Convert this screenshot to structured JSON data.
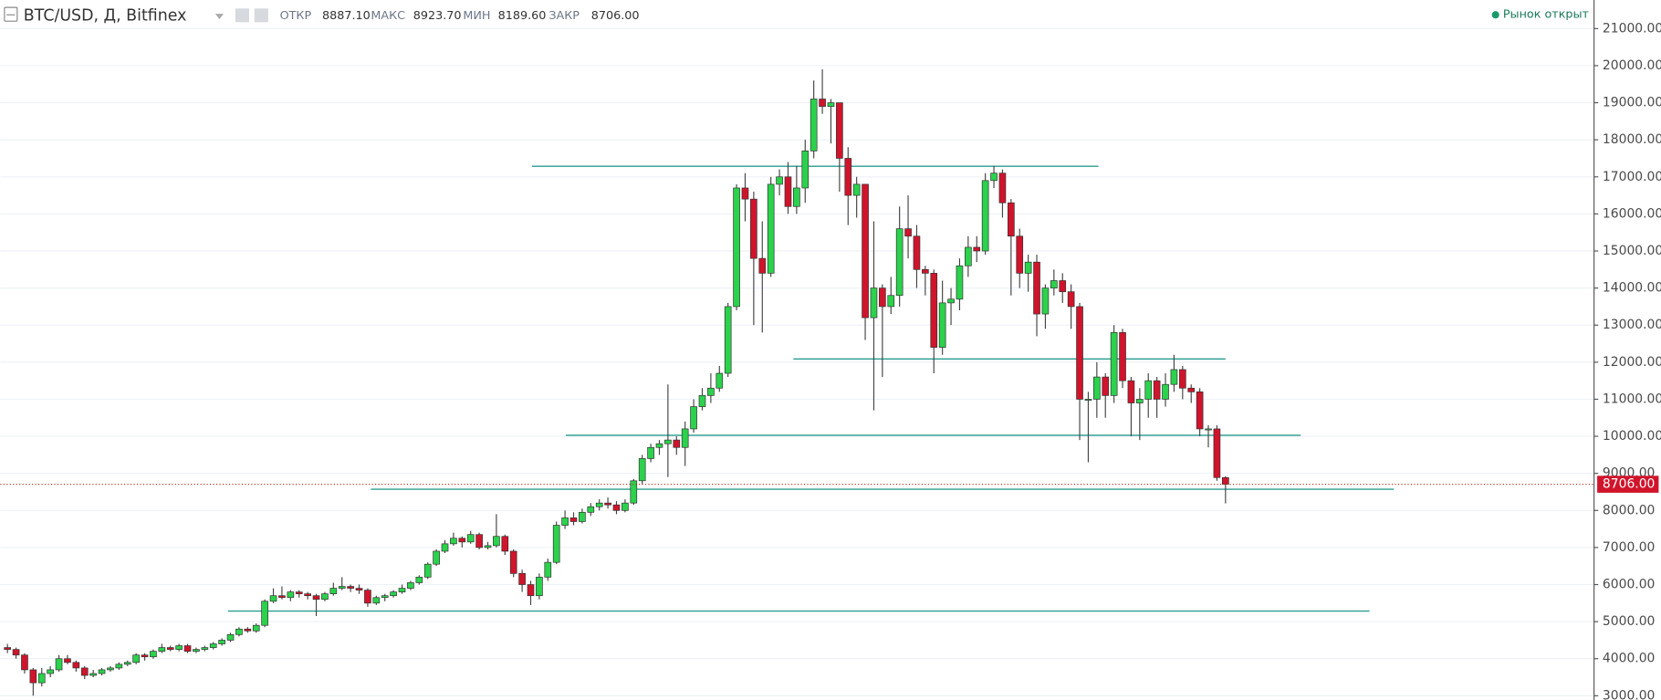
{
  "chart_data": {
    "type": "candlestick",
    "title": "BTC/USD, Д, Bitfinex",
    "ohlc": [
      {
        "label": "ОТКР",
        "value": 8887.1,
        "value_label": "8887.10"
      },
      {
        "label": "МАКС",
        "value": 8923.7,
        "value_label": "8923.70"
      },
      {
        "label": "МИН",
        "value": 8189.6,
        "value_label": "8189.60"
      },
      {
        "label": "ЗАКР",
        "value": 8706,
        "value_label": "8706.00"
      }
    ],
    "status": "Рынок открыт",
    "up_color": "#2bd24c",
    "down_color": "#d0142b",
    "ylim": [
      3000,
      21000
    ],
    "yticks": [
      {
        "value": 3000,
        "label": "3000.00"
      },
      {
        "value": 4000,
        "label": "4000.00"
      },
      {
        "value": 5000,
        "label": "5000.00"
      },
      {
        "value": 6000,
        "label": "6000.00"
      },
      {
        "value": 7000,
        "label": "7000.00"
      },
      {
        "value": 8000,
        "label": "8000.00"
      },
      {
        "value": 9000,
        "label": "9000.00"
      },
      {
        "value": 10000,
        "label": "10000.00"
      },
      {
        "value": 11000,
        "label": "11000.00"
      },
      {
        "value": 12000,
        "label": "12000.00"
      },
      {
        "value": 13000,
        "label": "13000.00"
      },
      {
        "value": 14000,
        "label": "14000.00"
      },
      {
        "value": 15000,
        "label": "15000.00"
      },
      {
        "value": 16000,
        "label": "16000.00"
      },
      {
        "value": 17000,
        "label": "17000.00"
      },
      {
        "value": 18000,
        "label": "18000.00"
      },
      {
        "value": 19000,
        "label": "19000.00"
      },
      {
        "value": 20000,
        "label": "20000.00"
      },
      {
        "value": 21000,
        "label": "21000.00"
      }
    ],
    "grid": true,
    "last_price": {
      "value": 8706,
      "label": "8706.00"
    },
    "levels": [
      17286,
      12086,
      10029,
      8571,
      5286
    ],
    "candles": [
      [
        4300,
        4400,
        4150,
        4250
      ],
      [
        4250,
        4300,
        4000,
        4100
      ],
      [
        4100,
        4150,
        3600,
        3700
      ],
      [
        3700,
        3750,
        3000,
        3350
      ],
      [
        3350,
        3750,
        3250,
        3600
      ],
      [
        3600,
        3800,
        3500,
        3700
      ],
      [
        3700,
        4100,
        3650,
        4000
      ],
      [
        4000,
        4100,
        3850,
        3900
      ],
      [
        3900,
        3950,
        3650,
        3750
      ],
      [
        3750,
        3800,
        3450,
        3550
      ],
      [
        3550,
        3700,
        3500,
        3600
      ],
      [
        3600,
        3750,
        3550,
        3700
      ],
      [
        3700,
        3800,
        3650,
        3750
      ],
      [
        3750,
        3900,
        3700,
        3850
      ],
      [
        3850,
        3950,
        3800,
        3900
      ],
      [
        3900,
        4150,
        3850,
        4100
      ],
      [
        4100,
        4150,
        3950,
        4050
      ],
      [
        4050,
        4250,
        4000,
        4200
      ],
      [
        4200,
        4400,
        4150,
        4300
      ],
      [
        4300,
        4350,
        4200,
        4250
      ],
      [
        4250,
        4400,
        4200,
        4350
      ],
      [
        4350,
        4400,
        4150,
        4200
      ],
      [
        4200,
        4300,
        4150,
        4250
      ],
      [
        4250,
        4350,
        4200,
        4300
      ],
      [
        4300,
        4450,
        4250,
        4400
      ],
      [
        4400,
        4550,
        4350,
        4500
      ],
      [
        4500,
        4700,
        4450,
        4650
      ],
      [
        4650,
        4850,
        4600,
        4800
      ],
      [
        4800,
        4850,
        4700,
        4750
      ],
      [
        4750,
        4950,
        4700,
        4900
      ],
      [
        4900,
        5600,
        4850,
        5550
      ],
      [
        5550,
        5900,
        5500,
        5700
      ],
      [
        5700,
        5950,
        5600,
        5650
      ],
      [
        5650,
        5850,
        5550,
        5800
      ],
      [
        5800,
        5850,
        5650,
        5750
      ],
      [
        5750,
        5800,
        5600,
        5700
      ],
      [
        5700,
        5750,
        5150,
        5600
      ],
      [
        5600,
        5800,
        5550,
        5750
      ],
      [
        5750,
        6050,
        5700,
        5900
      ],
      [
        5900,
        6200,
        5850,
        5950
      ],
      [
        5950,
        6000,
        5800,
        5900
      ],
      [
        5900,
        6000,
        5750,
        5850
      ],
      [
        5850,
        5900,
        5400,
        5500
      ],
      [
        5500,
        5700,
        5450,
        5650
      ],
      [
        5650,
        5750,
        5550,
        5700
      ],
      [
        5700,
        5850,
        5650,
        5800
      ],
      [
        5800,
        6000,
        5750,
        5900
      ],
      [
        5900,
        6100,
        5850,
        6050
      ],
      [
        6050,
        6250,
        6000,
        6200
      ],
      [
        6200,
        6600,
        6150,
        6550
      ],
      [
        6550,
        6950,
        6500,
        6900
      ],
      [
        6900,
        7200,
        6850,
        7100
      ],
      [
        7100,
        7400,
        7050,
        7250
      ],
      [
        7250,
        7300,
        7000,
        7150
      ],
      [
        7150,
        7450,
        7100,
        7350
      ],
      [
        7350,
        7400,
        6950,
        7000
      ],
      [
        7000,
        7150,
        6950,
        7050
      ],
      [
        7050,
        7900,
        7000,
        7300
      ],
      [
        7300,
        7350,
        6800,
        6900
      ],
      [
        6900,
        6950,
        6200,
        6300
      ],
      [
        6300,
        6400,
        5800,
        6000
      ],
      [
        6000,
        6100,
        5450,
        5700
      ],
      [
        5700,
        6300,
        5600,
        6200
      ],
      [
        6200,
        6700,
        6100,
        6600
      ],
      [
        6600,
        7700,
        6550,
        7600
      ],
      [
        7600,
        8000,
        7500,
        7800
      ],
      [
        7800,
        7950,
        7600,
        7700
      ],
      [
        7700,
        8050,
        7650,
        7950
      ],
      [
        7950,
        8200,
        7850,
        8100
      ],
      [
        8100,
        8300,
        8000,
        8200
      ],
      [
        8200,
        8350,
        8050,
        8150
      ],
      [
        8150,
        8250,
        7900,
        8000
      ],
      [
        8000,
        8300,
        7950,
        8200
      ],
      [
        8200,
        8850,
        8150,
        8800
      ],
      [
        8800,
        9500,
        8700,
        9400
      ],
      [
        9400,
        9800,
        9300,
        9700
      ],
      [
        9700,
        9900,
        9500,
        9800
      ],
      [
        9800,
        11400,
        8900,
        9900
      ],
      [
        9900,
        10000,
        9500,
        9700
      ],
      [
        9700,
        10400,
        9200,
        10200
      ],
      [
        10200,
        11000,
        10100,
        10800
      ],
      [
        10800,
        11300,
        10700,
        11100
      ],
      [
        11100,
        11700,
        10900,
        11300
      ],
      [
        11300,
        11900,
        11200,
        11700
      ],
      [
        11700,
        13600,
        11600,
        13500
      ],
      [
        13500,
        16800,
        13400,
        16700
      ],
      [
        16700,
        17100,
        15800,
        16400
      ],
      [
        16400,
        16600,
        13000,
        14800
      ],
      [
        14800,
        15800,
        12800,
        14400
      ],
      [
        14400,
        17000,
        14300,
        16800
      ],
      [
        16800,
        17200,
        16500,
        17000
      ],
      [
        17000,
        17400,
        16000,
        16200
      ],
      [
        16200,
        17300,
        16000,
        16700
      ],
      [
        16700,
        18000,
        16300,
        17700
      ],
      [
        17700,
        19600,
        17500,
        19100
      ],
      [
        19100,
        19900,
        18700,
        18900
      ],
      [
        18900,
        19100,
        17900,
        19000
      ],
      [
        19000,
        19000,
        16600,
        17500
      ],
      [
        17500,
        17800,
        15700,
        16500
      ],
      [
        16500,
        17000,
        15900,
        16800
      ],
      [
        16800,
        16800,
        12600,
        13200
      ],
      [
        13200,
        15800,
        10700,
        14000
      ],
      [
        14000,
        14100,
        11600,
        13500
      ],
      [
        13500,
        14300,
        13300,
        13800
      ],
      [
        13800,
        16200,
        13500,
        15600
      ],
      [
        15600,
        16500,
        14800,
        15400
      ],
      [
        15400,
        15700,
        14000,
        14500
      ],
      [
        14500,
        14600,
        13800,
        14400
      ],
      [
        14400,
        14500,
        11700,
        12400
      ],
      [
        12400,
        14200,
        12200,
        13600
      ],
      [
        13600,
        14000,
        13000,
        13700
      ],
      [
        13700,
        14800,
        13400,
        14600
      ],
      [
        14600,
        15400,
        14300,
        15100
      ],
      [
        15100,
        15400,
        14700,
        15000
      ],
      [
        15000,
        17100,
        14900,
        16900
      ],
      [
        16900,
        17300,
        16700,
        17100
      ],
      [
        17100,
        17200,
        15900,
        16300
      ],
      [
        16300,
        16400,
        13800,
        15400
      ],
      [
        15400,
        15600,
        14000,
        14400
      ],
      [
        14400,
        14900,
        13900,
        14700
      ],
      [
        14700,
        14900,
        12700,
        13300
      ],
      [
        13300,
        14100,
        12900,
        14000
      ],
      [
        14000,
        14500,
        13800,
        14200
      ],
      [
        14200,
        14400,
        13600,
        13900
      ],
      [
        13900,
        14100,
        12900,
        13500
      ],
      [
        13500,
        13600,
        9900,
        11000
      ],
      [
        11000,
        11200,
        9300,
        11000
      ],
      [
        11000,
        12000,
        10500,
        11600
      ],
      [
        11600,
        11700,
        10500,
        11100
      ],
      [
        11100,
        13000,
        10900,
        12800
      ],
      [
        12800,
        12900,
        11300,
        11500
      ],
      [
        11500,
        11600,
        10000,
        10900
      ],
      [
        10900,
        11300,
        9900,
        11000
      ],
      [
        11000,
        11700,
        10500,
        11500
      ],
      [
        11500,
        11600,
        10500,
        11000
      ],
      [
        11000,
        11700,
        10800,
        11400
      ],
      [
        11400,
        12200,
        11200,
        11800
      ],
      [
        11800,
        11900,
        11000,
        11300
      ],
      [
        11300,
        11400,
        10900,
        11200
      ],
      [
        11200,
        11300,
        10000,
        10200
      ],
      [
        10200,
        10300,
        9700,
        10200
      ],
      [
        10200,
        10300,
        8800,
        8887.1
      ],
      [
        8887.1,
        8923.7,
        8189.6,
        8706
      ]
    ]
  }
}
